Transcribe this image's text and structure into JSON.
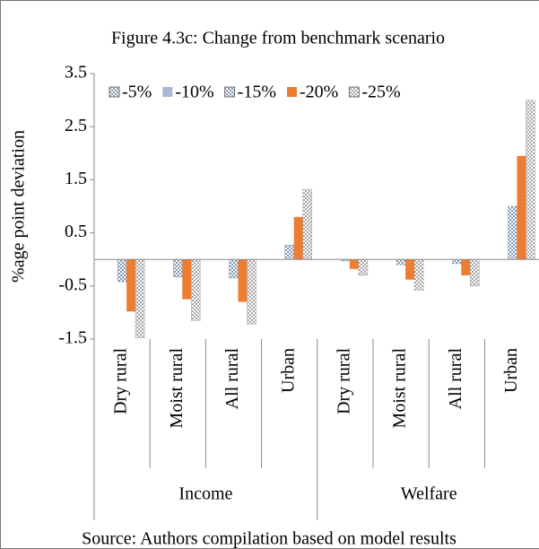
{
  "chart_data": {
    "type": "bar",
    "title": "Figure 4.3c: Change from benchmark scenario",
    "y_label": "%age point deviation",
    "source": "Source: Authors compilation based on model results",
    "groups": [
      {
        "name": "Income",
        "categories": [
          "Dry rural",
          "Moist rural",
          "All rural",
          "Urban"
        ]
      },
      {
        "name": "Welfare",
        "categories": [
          "Dry rural",
          "Moist rural",
          "All rural",
          "Urban"
        ]
      }
    ],
    "series": [
      {
        "name": "-5%",
        "color": "#8497b0",
        "pattern": "dots",
        "values": [
          0,
          0,
          0,
          0,
          0,
          0,
          0,
          0
        ]
      },
      {
        "name": "-10%",
        "color": "#a9b7d0",
        "pattern": "solid",
        "values": [
          0,
          0,
          0,
          0,
          0,
          0,
          0,
          0
        ]
      },
      {
        "name": "-15%",
        "color": "#8497b0",
        "pattern": "dots",
        "values": [
          -0.42,
          -0.33,
          -0.35,
          0.27,
          -0.03,
          -0.1,
          -0.08,
          1.0
        ]
      },
      {
        "name": "-20%",
        "color": "#ed7d31",
        "pattern": "solid",
        "values": [
          -0.98,
          -0.75,
          -0.8,
          0.8,
          -0.18,
          -0.38,
          -0.3,
          1.95
        ]
      },
      {
        "name": "-25%",
        "color": "#a6a6a6",
        "pattern": "dots",
        "values": [
          -1.48,
          -1.15,
          -1.22,
          1.32,
          -0.3,
          -0.58,
          -0.5,
          3.0
        ]
      }
    ],
    "ylim": [
      -1.5,
      3.5
    ],
    "yticks": [
      -1.5,
      -0.5,
      0.5,
      1.5,
      2.5,
      3.5
    ]
  }
}
